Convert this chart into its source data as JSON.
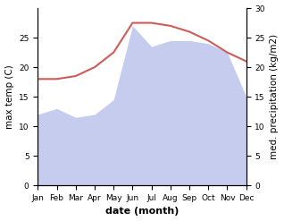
{
  "months": [
    "Jan",
    "Feb",
    "Mar",
    "Apr",
    "May",
    "Jun",
    "Jul",
    "Aug",
    "Sep",
    "Oct",
    "Nov",
    "Dec"
  ],
  "month_indices": [
    1,
    2,
    3,
    4,
    5,
    6,
    7,
    8,
    9,
    10,
    11,
    12
  ],
  "max_temp": [
    18.0,
    18.0,
    18.5,
    20.0,
    22.5,
    27.5,
    27.5,
    27.0,
    26.0,
    24.5,
    22.5,
    21.0
  ],
  "precipitation": [
    12.0,
    13.0,
    11.5,
    12.0,
    14.5,
    27.0,
    23.5,
    24.5,
    24.5,
    24.0,
    22.5,
    15.0
  ],
  "temp_color": "#cd5c5c",
  "precip_fill_color": "#c5ccee",
  "temp_ylim": [
    0,
    30
  ],
  "precip_ylim": [
    0,
    30
  ],
  "temp_yticks": [
    0,
    5,
    10,
    15,
    20,
    25
  ],
  "precip_yticks": [
    0,
    5,
    10,
    15,
    20,
    25,
    30
  ],
  "ylabel_left": "max temp (C)",
  "ylabel_right": "med. precipitation (kg/m2)",
  "xlabel": "date (month)",
  "background_color": "#ffffff",
  "line_width": 1.5,
  "font_size_ticks": 6.5,
  "font_size_labels": 7.5,
  "font_size_xlabel": 8
}
